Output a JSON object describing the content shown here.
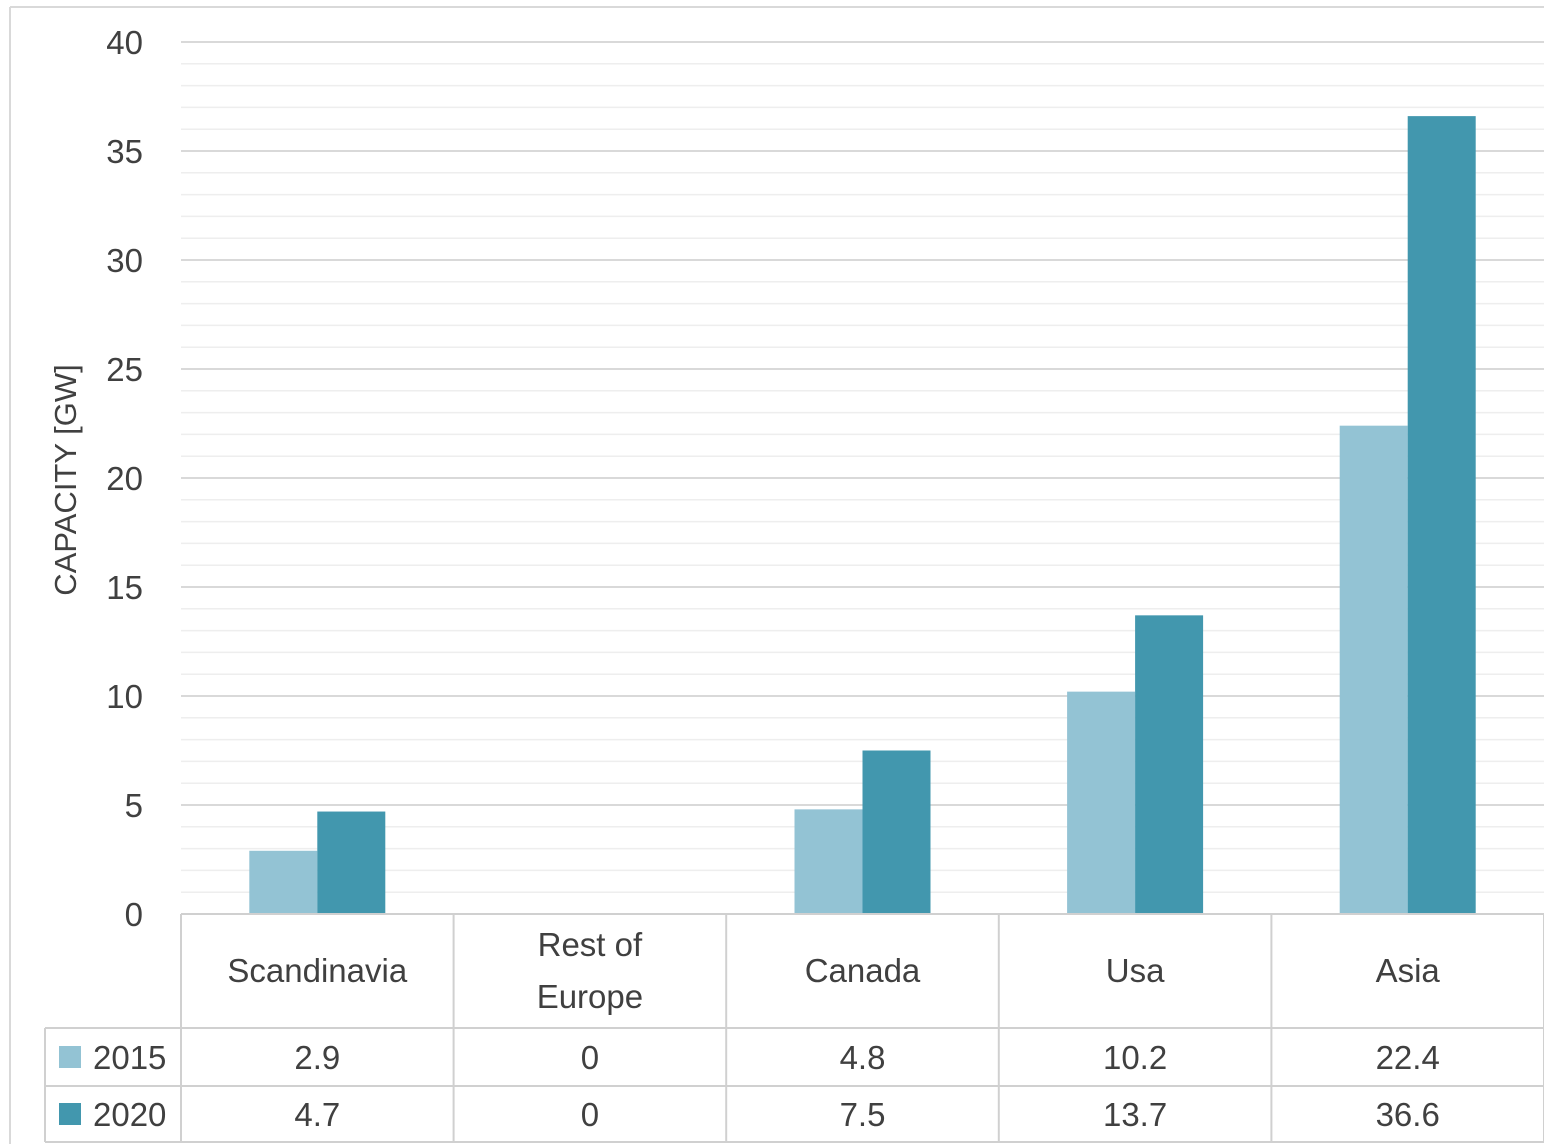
{
  "chart_data": {
    "type": "bar",
    "title": "",
    "xlabel": "",
    "ylabel": "CAPACITY [GW]",
    "ylim": [
      0,
      40
    ],
    "yticks": [
      0,
      5,
      10,
      15,
      20,
      25,
      30,
      35,
      40
    ],
    "grid": true,
    "categories": [
      [
        "Scandinavia"
      ],
      [
        "Rest of",
        "Europe"
      ],
      [
        "Canada"
      ],
      [
        "Usa"
      ],
      [
        "Asia"
      ]
    ],
    "series": [
      {
        "name": "2015",
        "color": "#93c3d4",
        "values": [
          2.9,
          0,
          4.8,
          10.2,
          22.4
        ],
        "labels": [
          "2.9",
          "0",
          "4.8",
          "10.2",
          "22.4"
        ]
      },
      {
        "name": "2020",
        "color": "#4297ae",
        "values": [
          4.7,
          0,
          7.5,
          13.7,
          36.6
        ],
        "labels": [
          "4.7",
          "0",
          "7.5",
          "13.7",
          "36.6"
        ]
      }
    ],
    "legend": "data-table"
  }
}
